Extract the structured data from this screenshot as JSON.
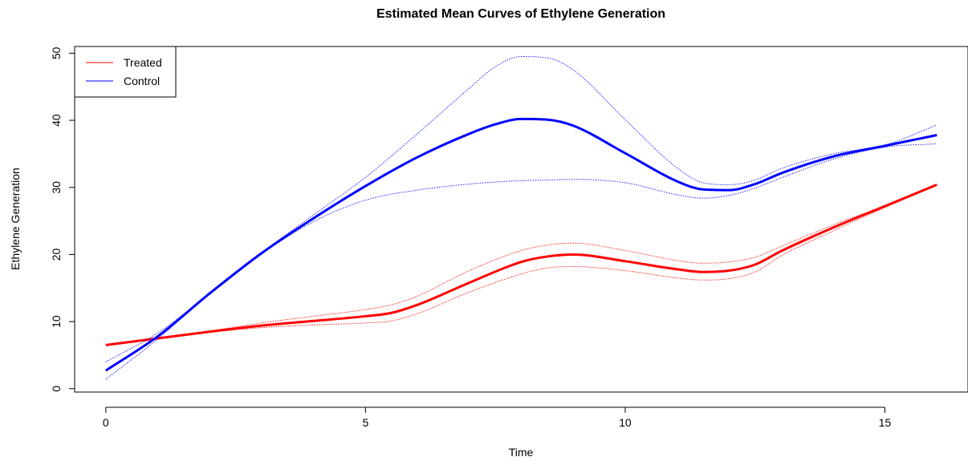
{
  "chart_data": {
    "type": "line",
    "title": "Estimated Mean Curves of Ethylene Generation",
    "xlabel": "Time",
    "ylabel": "Ethylene Generation",
    "xlim": [
      -0.6,
      16.6
    ],
    "ylim": [
      -0.5,
      51
    ],
    "x_ticks": [
      0,
      5,
      10,
      15
    ],
    "y_ticks": [
      0,
      10,
      20,
      30,
      40,
      50
    ],
    "x_tick_labels": [
      "0",
      "5",
      "10",
      "15"
    ],
    "y_tick_labels": [
      "0",
      "10",
      "20",
      "30",
      "40",
      "50"
    ],
    "grid": false,
    "legend_position": "top-left",
    "legend": [
      {
        "label": "Treated",
        "color": "#ff0000"
      },
      {
        "label": "Control",
        "color": "#0000ff"
      }
    ],
    "series": [
      {
        "name": "Treated",
        "role": "mean",
        "color": "#ff0000",
        "x": [
          0,
          1,
          2,
          3,
          4,
          5,
          5.5,
          6,
          7,
          8,
          8.5,
          9,
          10,
          11,
          11.5,
          12,
          12.5,
          13,
          14,
          15,
          16
        ],
        "y": [
          6.5,
          7.5,
          8.5,
          9.4,
          10.1,
          10.8,
          11.3,
          12.5,
          15.8,
          18.9,
          19.7,
          20.0,
          19.0,
          17.8,
          17.4,
          17.6,
          18.5,
          20.5,
          24.0,
          27.2,
          30.4
        ]
      },
      {
        "name": "Treated",
        "role": "upper",
        "color": "#ff0000",
        "x": [
          0,
          1,
          2,
          3,
          4,
          5,
          5.5,
          6,
          7,
          8,
          8.5,
          9,
          10,
          11,
          11.5,
          12,
          12.5,
          13,
          14,
          15,
          16
        ],
        "y": [
          6.5,
          7.5,
          8.6,
          9.8,
          10.8,
          11.8,
          12.5,
          13.8,
          17.6,
          20.6,
          21.4,
          21.7,
          20.6,
          19.1,
          18.7,
          18.9,
          19.6,
          21.2,
          24.4,
          27.3,
          30.5
        ]
      },
      {
        "name": "Treated",
        "role": "lower",
        "color": "#ff0000",
        "x": [
          0,
          1,
          2,
          3,
          4,
          5,
          5.5,
          6,
          7,
          8,
          8.5,
          9,
          10,
          11,
          11.5,
          12,
          12.5,
          13,
          14,
          15,
          16
        ],
        "y": [
          6.5,
          7.5,
          8.4,
          9.1,
          9.5,
          9.8,
          10.1,
          11.2,
          14.4,
          17.1,
          18.0,
          18.2,
          17.6,
          16.5,
          16.2,
          16.4,
          17.4,
          19.8,
          23.5,
          27.0,
          30.3
        ]
      },
      {
        "name": "Control",
        "role": "mean",
        "color": "#0000ff",
        "x": [
          0,
          1,
          2,
          3,
          4,
          5,
          6,
          7,
          7.5,
          8,
          8.5,
          9,
          10,
          11,
          11.5,
          12,
          12.5,
          13,
          14,
          15,
          16
        ],
        "y": [
          2.7,
          7.8,
          14.2,
          20.2,
          25.4,
          30.2,
          34.5,
          38.0,
          39.4,
          40.2,
          40.1,
          39.2,
          35.1,
          30.9,
          29.7,
          29.6,
          30.5,
          32.1,
          34.6,
          36.2,
          37.8
        ]
      },
      {
        "name": "Control",
        "role": "upper",
        "color": "#0000ff",
        "x": [
          0,
          1,
          2,
          3,
          4,
          5,
          6,
          7,
          7.5,
          8,
          8.5,
          9,
          10,
          11,
          11.5,
          12,
          12.5,
          13,
          14,
          15,
          16
        ],
        "y": [
          4.0,
          8.3,
          14.2,
          20.3,
          25.9,
          31.5,
          38.0,
          44.8,
          48.0,
          49.5,
          49.3,
          47.5,
          40.1,
          32.9,
          30.7,
          30.4,
          31.1,
          32.8,
          35.0,
          36.3,
          39.3
        ]
      },
      {
        "name": "Control",
        "role": "lower",
        "color": "#0000ff",
        "x": [
          0,
          1,
          2,
          3,
          4,
          5,
          6,
          7,
          7.5,
          8,
          8.5,
          9,
          10,
          11,
          11.5,
          12,
          12.5,
          13,
          14,
          15,
          16
        ],
        "y": [
          1.4,
          7.4,
          14.2,
          20.1,
          24.9,
          28.1,
          29.6,
          30.5,
          30.8,
          31.0,
          31.1,
          31.2,
          30.7,
          28.9,
          28.4,
          28.8,
          29.9,
          31.4,
          34.2,
          36.0,
          36.5
        ]
      }
    ]
  }
}
